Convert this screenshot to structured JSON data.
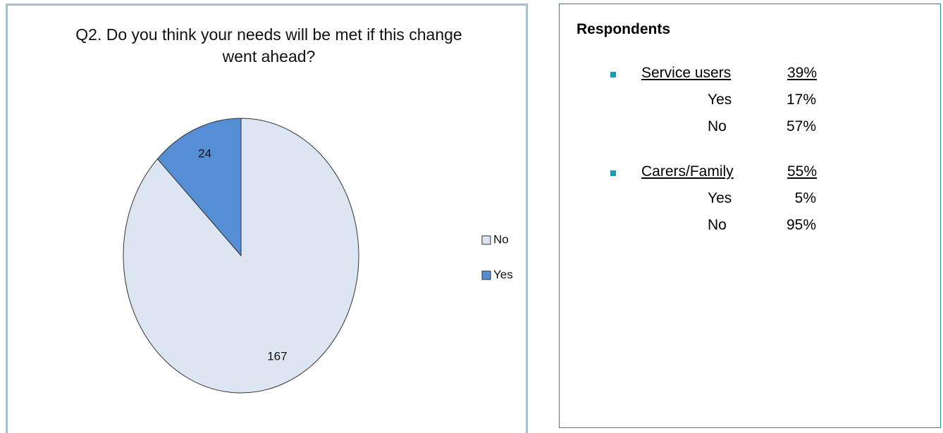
{
  "chart_data": {
    "type": "pie",
    "title": "Q2. Do you think your needs will be met if this change went ahead?",
    "categories": [
      "No",
      "Yes"
    ],
    "values": [
      167,
      24
    ],
    "colors": [
      "#dce6f2",
      "#558ed5"
    ],
    "legend": "right"
  },
  "respondents": {
    "heading": "Respondents",
    "groups": [
      {
        "label": "Service users",
        "total": "39%",
        "rows": [
          {
            "label": "Yes",
            "value": "17%"
          },
          {
            "label": "No",
            "value": "57%"
          }
        ]
      },
      {
        "label": "Carers/Family",
        "total": "55%",
        "rows": [
          {
            "label": "Yes",
            "value": "5%"
          },
          {
            "label": "No",
            "value": "95%"
          }
        ]
      }
    ]
  }
}
